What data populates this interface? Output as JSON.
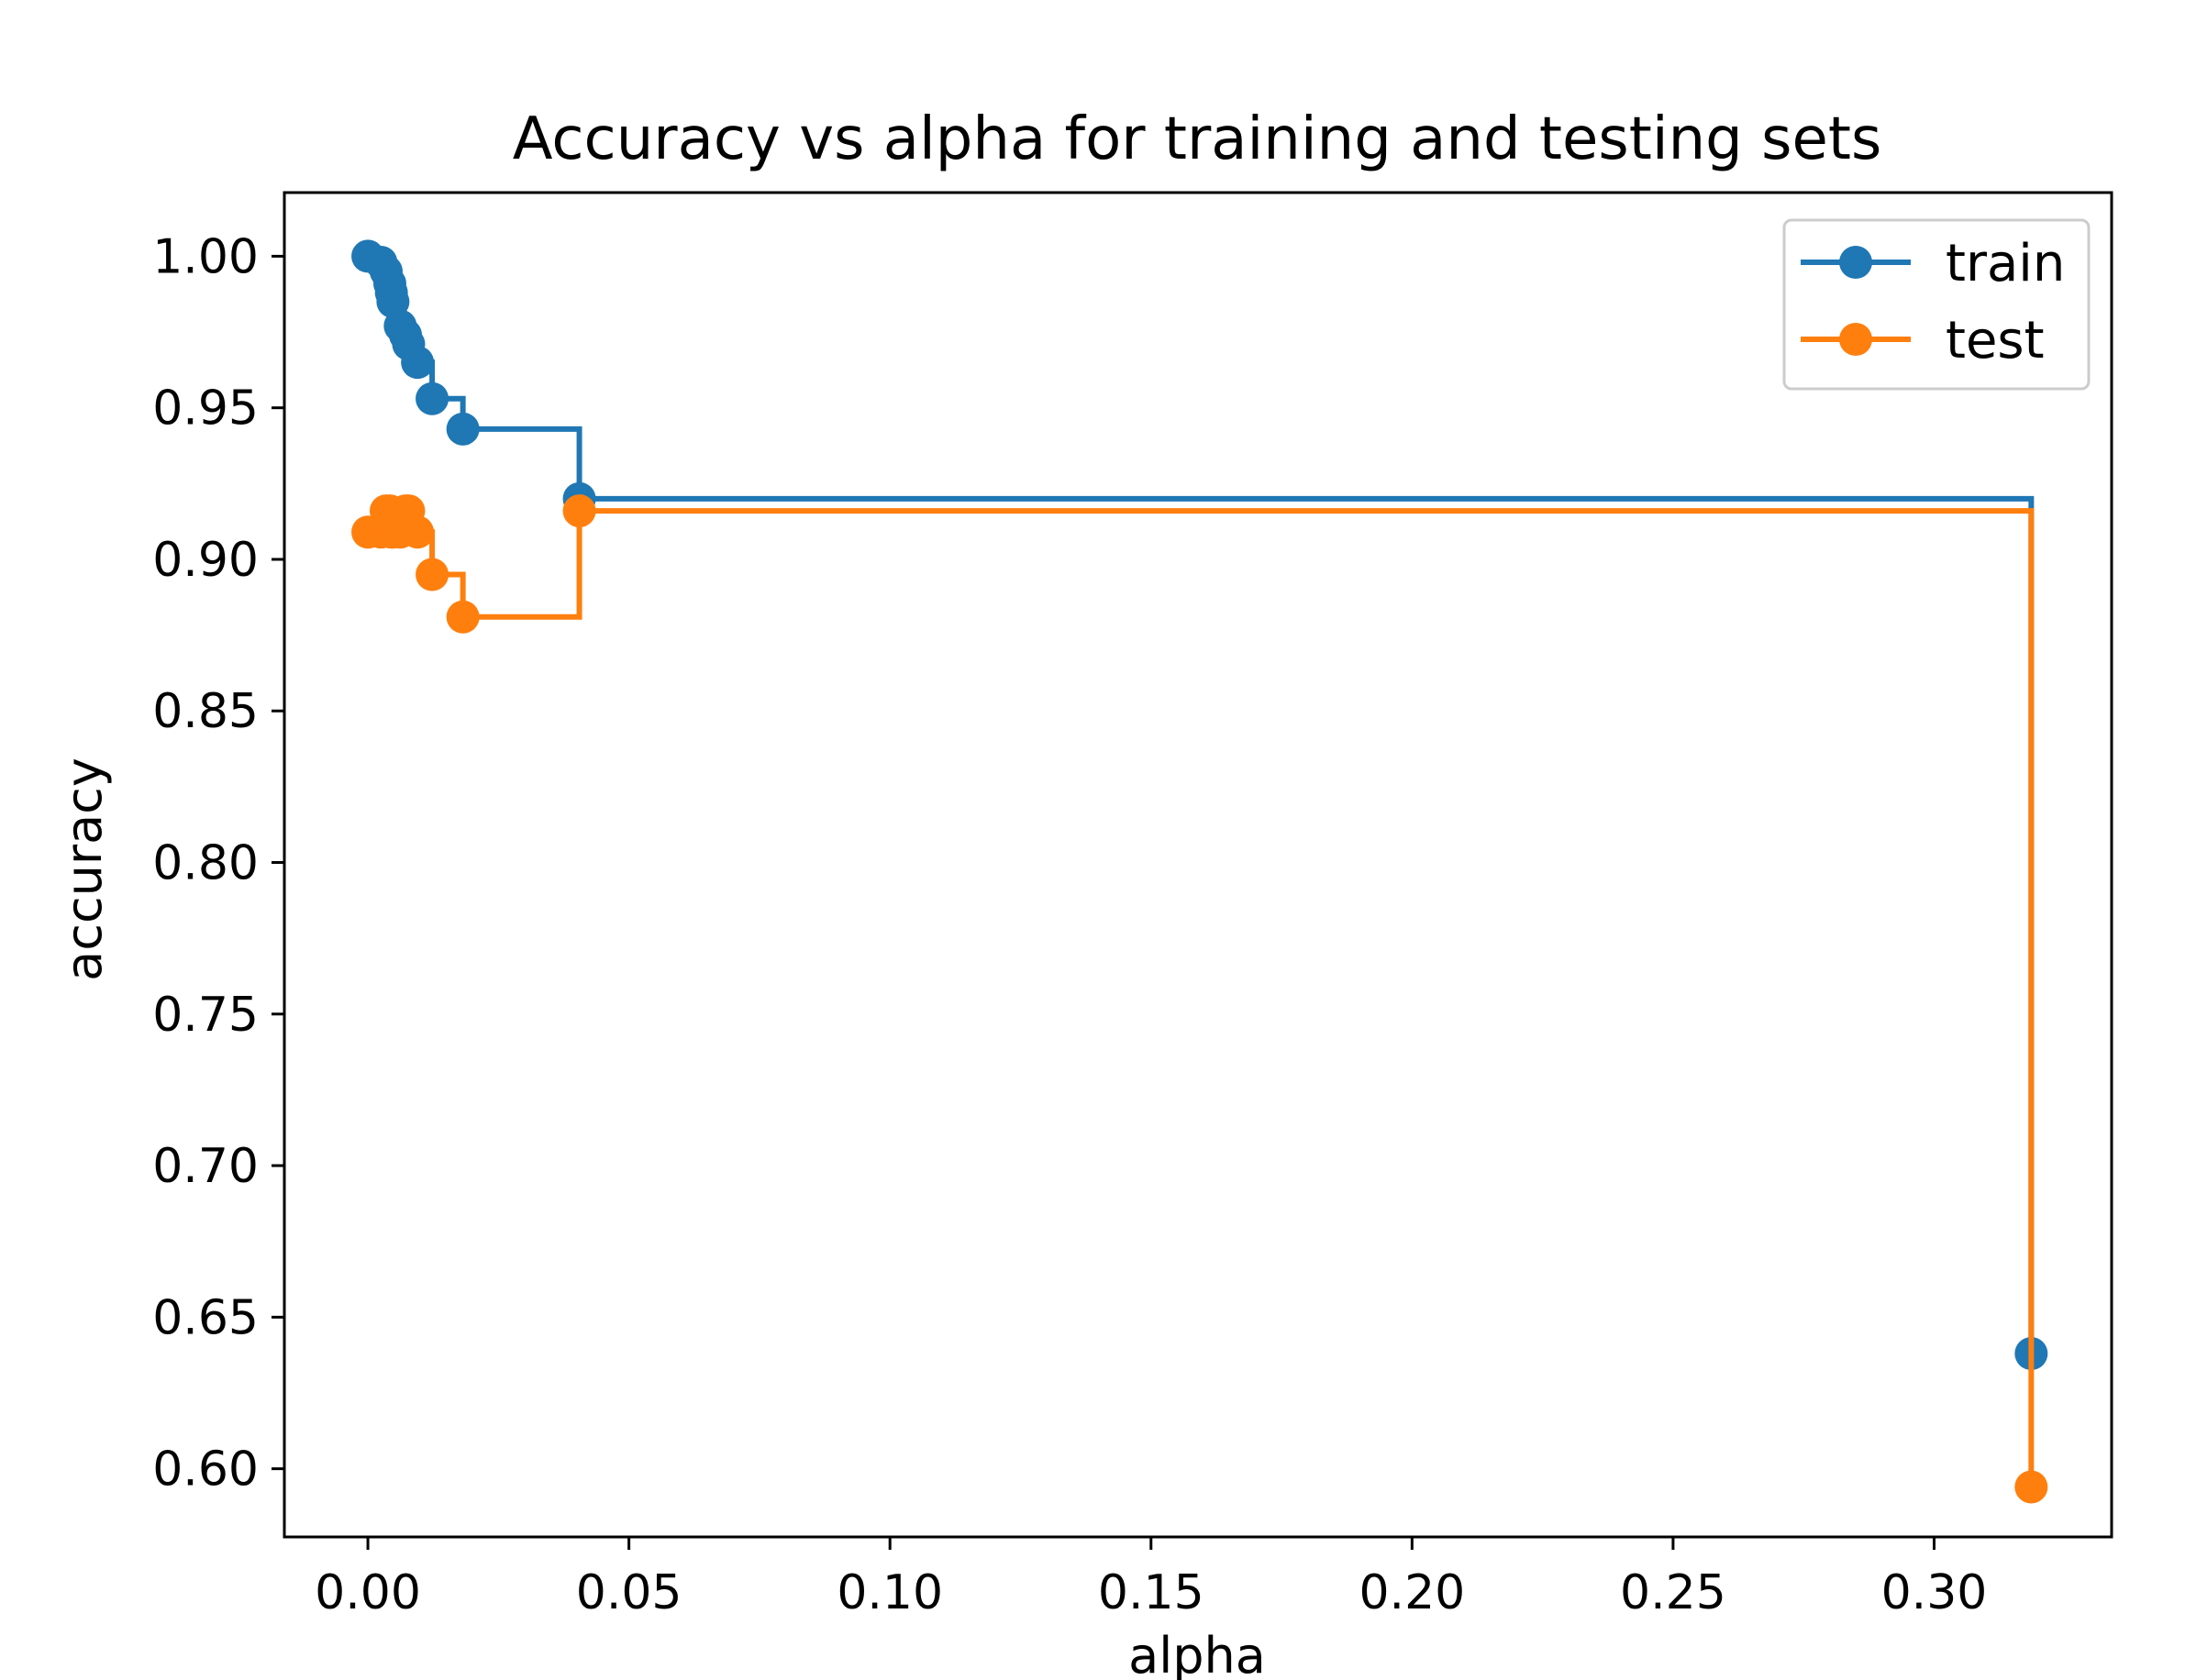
{
  "chart_data": {
    "type": "line",
    "drawstyle": "steps-post",
    "marker": "circle",
    "title": "Accuracy vs alpha for training and testing sets",
    "xlabel": "alpha",
    "ylabel": "accuracy",
    "xlim": [
      -0.016,
      0.334
    ],
    "ylim": [
      0.5775,
      1.021
    ],
    "xticks": [
      0.0,
      0.05,
      0.1,
      0.15,
      0.2,
      0.25,
      0.3
    ],
    "xtick_labels": [
      "0.00",
      "0.05",
      "0.10",
      "0.15",
      "0.20",
      "0.25",
      "0.30"
    ],
    "yticks": [
      0.6,
      0.65,
      0.7,
      0.75,
      0.8,
      0.85,
      0.9,
      0.95,
      1.0
    ],
    "ytick_labels": [
      "0.60",
      "0.65",
      "0.70",
      "0.75",
      "0.80",
      "0.85",
      "0.90",
      "0.95",
      "1.00"
    ],
    "grid": false,
    "legend_placement": "top-right",
    "series": [
      {
        "name": "train",
        "color": "#1f77b4",
        "x": [
          0.0,
          0.0025,
          0.0035,
          0.0042,
          0.0045,
          0.0048,
          0.0062,
          0.0072,
          0.0078,
          0.0095,
          0.0123,
          0.0182,
          0.0405,
          0.3186
        ],
        "y": [
          1.0,
          0.998,
          0.995,
          0.991,
          0.988,
          0.985,
          0.977,
          0.974,
          0.971,
          0.965,
          0.953,
          0.943,
          0.92,
          0.638
        ]
      },
      {
        "name": "test",
        "color": "#ff7f0e",
        "x": [
          0.0,
          0.0025,
          0.0035,
          0.0042,
          0.0045,
          0.0048,
          0.0062,
          0.0072,
          0.0078,
          0.0095,
          0.0123,
          0.0182,
          0.0405,
          0.3186
        ],
        "y": [
          0.909,
          0.909,
          0.916,
          0.916,
          0.909,
          0.909,
          0.909,
          0.916,
          0.916,
          0.909,
          0.895,
          0.881,
          0.916,
          0.594
        ]
      }
    ]
  }
}
